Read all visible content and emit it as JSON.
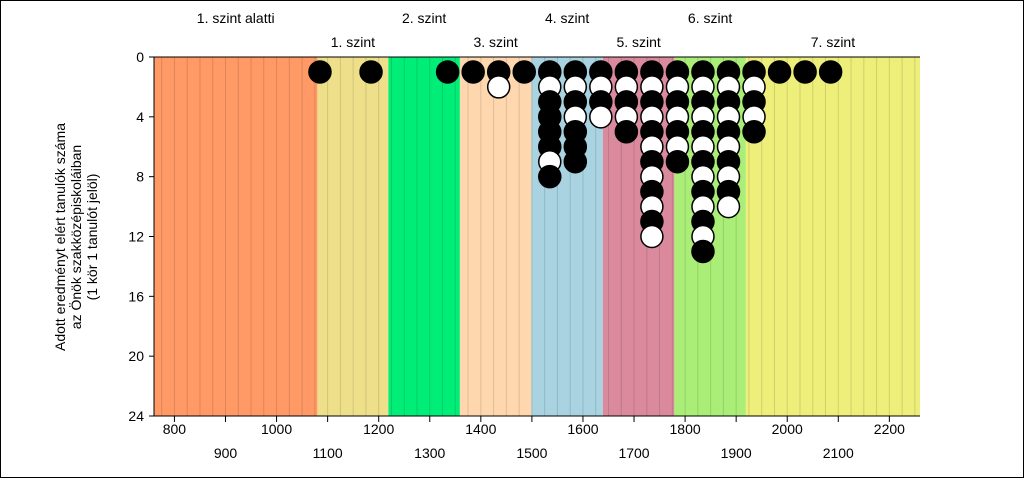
{
  "chart_data": {
    "type": "scatter",
    "ylabel_lines": [
      "Adott eredményt elért tanulók száma",
      "az Önök szakközépiskoláiban",
      "(1 kör 1 tanulót jelöl)"
    ],
    "xlim": [
      760,
      2260
    ],
    "ylim": [
      0,
      24
    ],
    "y_reversed": true,
    "y_ticks": [
      0,
      4,
      8,
      12,
      16,
      20,
      24
    ],
    "x_ticks_row1": [
      800,
      1000,
      1200,
      1400,
      1600,
      1800,
      2000,
      2200
    ],
    "x_ticks_row2": [
      900,
      1100,
      1300,
      1500,
      1700,
      1900,
      2100
    ],
    "levels": [
      {
        "name": "1. szint alatti",
        "from": 760,
        "to": 1080,
        "color": "#FF9966",
        "row": "top"
      },
      {
        "name": "1. szint",
        "from": 1080,
        "to": 1219,
        "color": "#EEE08A",
        "row": "bottom"
      },
      {
        "name": "2. szint",
        "from": 1219,
        "to": 1359,
        "color": "#00EE77",
        "row": "top"
      },
      {
        "name": "3. szint",
        "from": 1359,
        "to": 1499,
        "color": "#FFD7AE",
        "row": "bottom"
      },
      {
        "name": "4. szint",
        "from": 1499,
        "to": 1639,
        "color": "#A9D3E1",
        "row": "top"
      },
      {
        "name": "5. szint",
        "from": 1639,
        "to": 1779,
        "color": "#DA8A9C",
        "row": "bottom"
      },
      {
        "name": "6. szint",
        "from": 1779,
        "to": 1919,
        "color": "#AAEE77",
        "row": "top"
      },
      {
        "name": "7. szint",
        "from": 1919,
        "to": 2260,
        "color": "#EEEE7A",
        "row": "bottom"
      }
    ],
    "bins": [
      {
        "x": 1085,
        "markers": [
          "b"
        ]
      },
      {
        "x": 1185,
        "markers": [
          "b"
        ]
      },
      {
        "x": 1335,
        "markers": [
          "b"
        ]
      },
      {
        "x": 1385,
        "markers": [
          "b"
        ]
      },
      {
        "x": 1435,
        "markers": [
          "b",
          "w"
        ]
      },
      {
        "x": 1485,
        "markers": [
          "b"
        ]
      },
      {
        "x": 1535,
        "markers": [
          "b",
          "w",
          "b",
          "b",
          "b",
          "b",
          "w",
          "b"
        ]
      },
      {
        "x": 1585,
        "markers": [
          "b",
          "w",
          "b",
          "w",
          "b",
          "b",
          "b"
        ]
      },
      {
        "x": 1635,
        "markers": [
          "b",
          "w",
          "b",
          "w"
        ]
      },
      {
        "x": 1685,
        "markers": [
          "b",
          "w",
          "b",
          "w",
          "b"
        ]
      },
      {
        "x": 1735,
        "markers": [
          "b",
          "w",
          "b",
          "w",
          "b",
          "w",
          "b",
          "w",
          "b",
          "w",
          "b",
          "w"
        ]
      },
      {
        "x": 1785,
        "markers": [
          "b",
          "w",
          "b",
          "w",
          "b",
          "w",
          "b"
        ]
      },
      {
        "x": 1835,
        "markers": [
          "b",
          "w",
          "b",
          "w",
          "b",
          "w",
          "b",
          "w",
          "b",
          "w",
          "b",
          "w",
          "b"
        ]
      },
      {
        "x": 1885,
        "markers": [
          "b",
          "w",
          "b",
          "w",
          "b",
          "w",
          "b",
          "w",
          "b",
          "w"
        ]
      },
      {
        "x": 1935,
        "markers": [
          "b",
          "w",
          "b",
          "w",
          "b"
        ]
      },
      {
        "x": 1985,
        "markers": [
          "b"
        ]
      },
      {
        "x": 2035,
        "markers": [
          "b"
        ]
      },
      {
        "x": 2085,
        "markers": [
          "b"
        ]
      }
    ],
    "grid": true,
    "marker_colors": {
      "b": "#000000",
      "w": "#FFFFFF"
    }
  }
}
